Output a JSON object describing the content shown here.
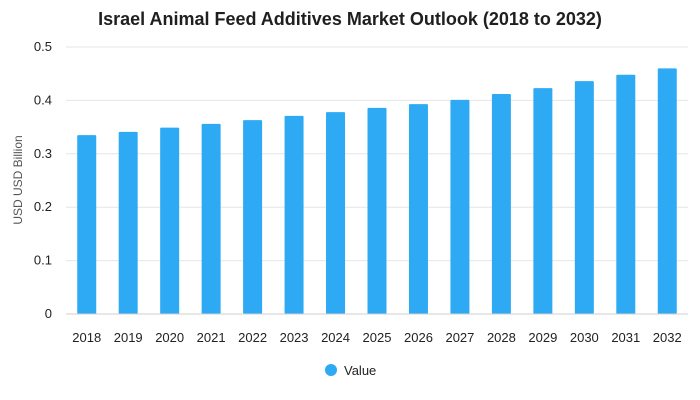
{
  "chart_data": {
    "type": "bar",
    "title": "Israel Animal Feed Additives Market Outlook (2018 to 2032)",
    "xlabel": "",
    "ylabel": "USD USD Billion",
    "categories": [
      "2018",
      "2019",
      "2020",
      "2021",
      "2022",
      "2023",
      "2024",
      "2025",
      "2026",
      "2027",
      "2028",
      "2029",
      "2030",
      "2031",
      "2032"
    ],
    "series": [
      {
        "name": "Value",
        "color": "#2eaaf5",
        "values": [
          0.335,
          0.341,
          0.349,
          0.356,
          0.363,
          0.371,
          0.378,
          0.386,
          0.393,
          0.401,
          0.412,
          0.423,
          0.436,
          0.448,
          0.46
        ]
      }
    ],
    "ylim": [
      0,
      0.5
    ],
    "yticks": [
      "0",
      "0.1",
      "0.2",
      "0.3",
      "0.4",
      "0.5"
    ],
    "grid": true,
    "legend_position": "bottom-center"
  }
}
